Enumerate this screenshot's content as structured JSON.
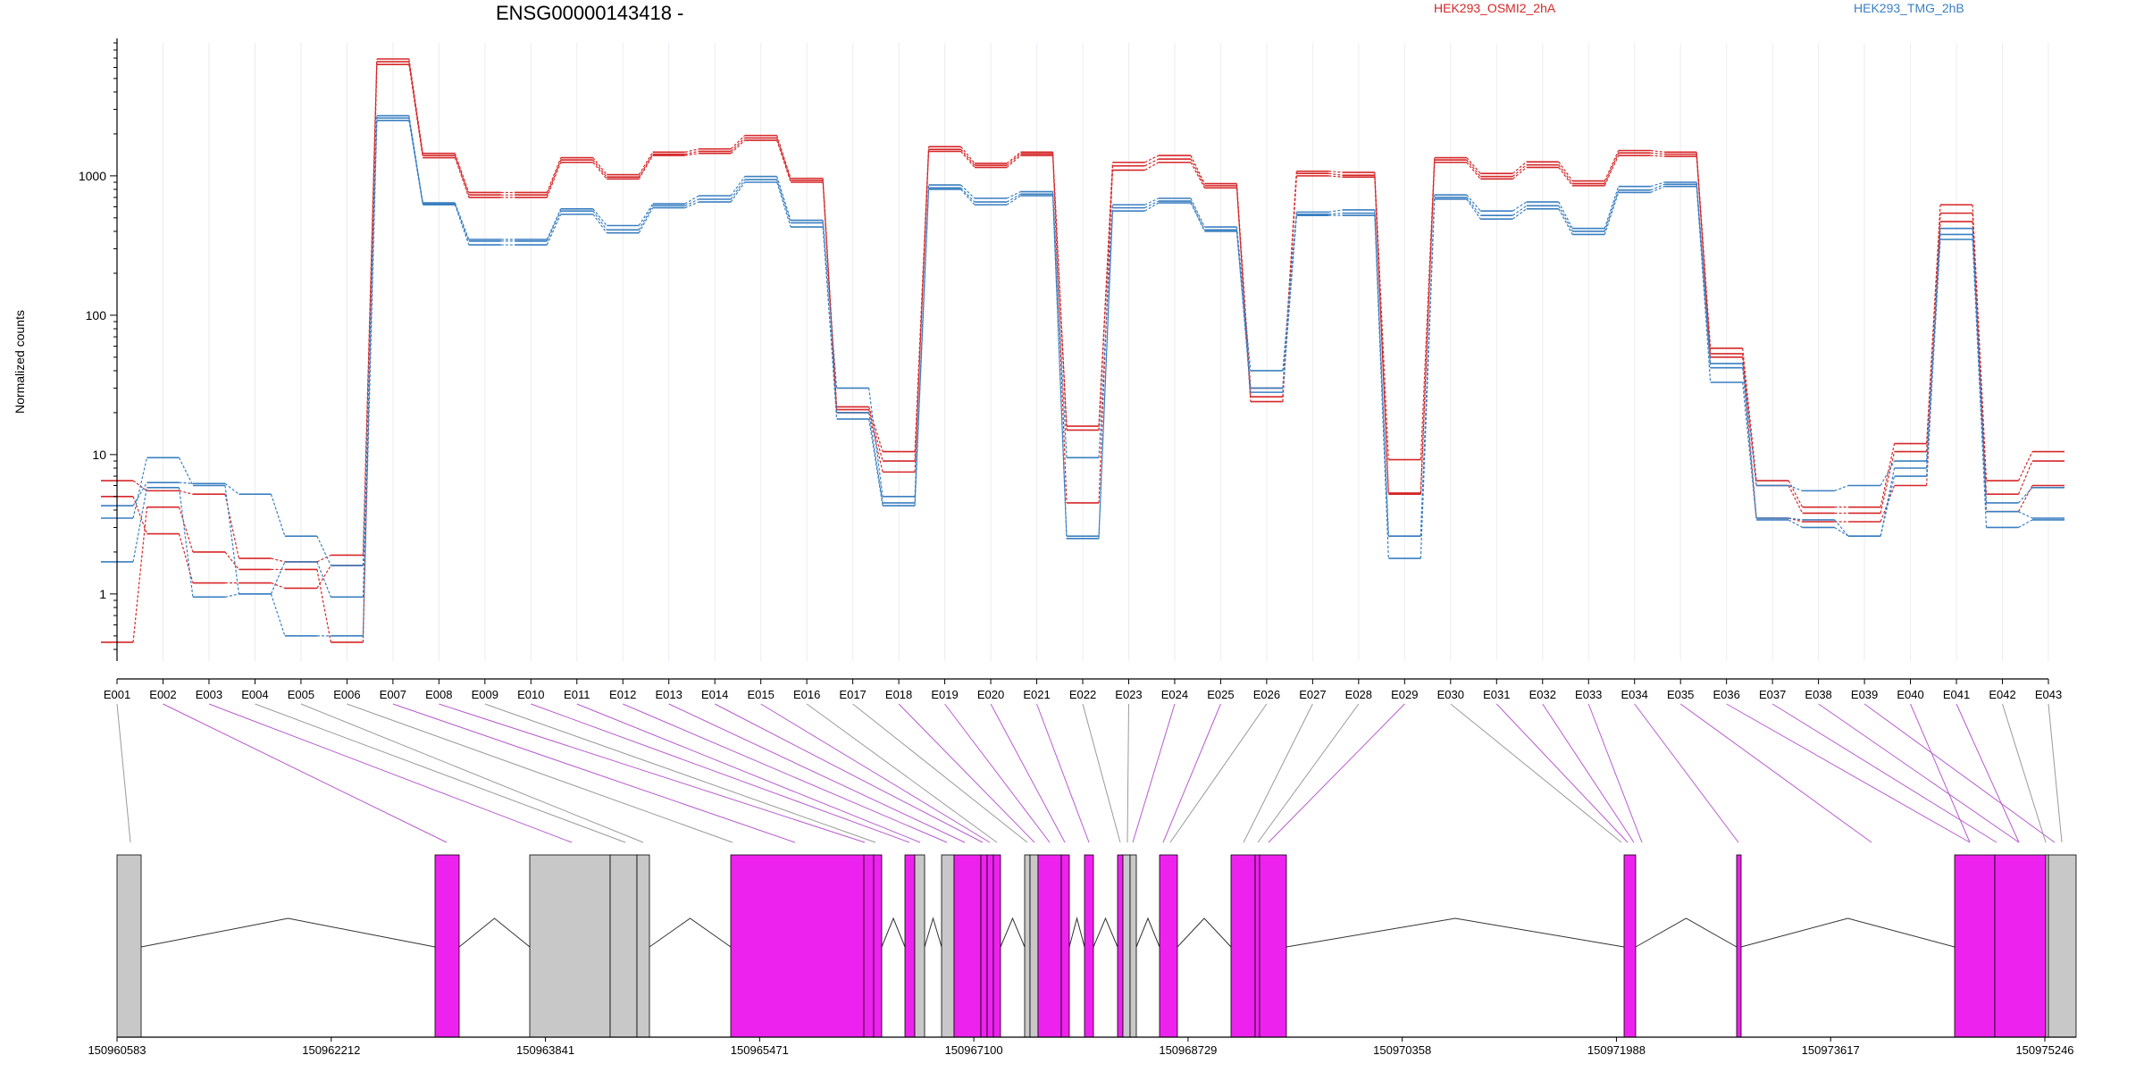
{
  "header": {
    "title": "ENSG00000143418 -",
    "legend": [
      {
        "label": "HEK293_OSMI2_2hA",
        "color": "#d62728"
      },
      {
        "label": "HEK293_TMG_2hB",
        "color": "#3a7fc1"
      }
    ]
  },
  "colors": {
    "red": "#d62728",
    "blue": "#3a7fc1",
    "spliced": "#ee22ee",
    "constitutive": "#c8c8c8"
  },
  "chart_data": {
    "type": "line",
    "ylabel": "Normalized counts",
    "yscale": "log",
    "ylim": [
      0.33,
      9000
    ],
    "yticks": [
      {
        "value": 1,
        "label": "1"
      },
      {
        "value": 10,
        "label": "10"
      },
      {
        "value": 100,
        "label": "100"
      },
      {
        "value": 1000,
        "label": "1000"
      }
    ],
    "categories": [
      "E001",
      "E002",
      "E003",
      "E004",
      "E005",
      "E006",
      "E007",
      "E008",
      "E009",
      "E010",
      "E011",
      "E012",
      "E013",
      "E014",
      "E015",
      "E016",
      "E017",
      "E018",
      "E019",
      "E020",
      "E021",
      "E022",
      "E023",
      "E024",
      "E025",
      "E026",
      "E027",
      "E028",
      "E029",
      "E030",
      "E031",
      "E032",
      "E033",
      "E034",
      "E035",
      "E036",
      "E037",
      "E038",
      "E039",
      "E040",
      "E041",
      "E042",
      "E043"
    ],
    "series": [
      {
        "group": "HEK293_OSMI2_2hA",
        "values": [
          6.5,
          5.5,
          5.2,
          1.8,
          1.7,
          1.9,
          6900,
          1450,
          760,
          760,
          1350,
          1020,
          1480,
          1560,
          1950,
          960,
          22,
          10.5,
          1620,
          1230,
          1480,
          16,
          1250,
          1400,
          880,
          30,
          1080,
          1060,
          9.2,
          1350,
          1040,
          1260,
          920,
          1520,
          1480,
          58,
          6.5,
          4.2,
          4.2,
          12,
          620,
          6.5,
          10.5
        ]
      },
      {
        "group": "HEK293_OSMI2_2hA",
        "values": [
          0.45,
          4.2,
          2,
          1.5,
          1.5,
          0.45,
          6300,
          1350,
          700,
          700,
          1250,
          950,
          1400,
          1450,
          1800,
          900,
          21,
          9,
          1500,
          1150,
          1400,
          15,
          1100,
          1250,
          820,
          26,
          1000,
          980,
          5.2,
          1250,
          950,
          1150,
          850,
          1400,
          1380,
          53,
          6,
          3.8,
          3.8,
          10.5,
          540,
          5.2,
          9
        ]
      },
      {
        "group": "HEK293_OSMI2_2hA",
        "values": [
          5,
          2.7,
          1.2,
          1.2,
          1.1,
          1.6,
          6600,
          1400,
          730,
          730,
          1300,
          980,
          1430,
          1500,
          1870,
          930,
          20,
          7.5,
          1550,
          1190,
          1440,
          4.5,
          1180,
          1320,
          850,
          24,
          1040,
          1010,
          5.3,
          1300,
          990,
          1200,
          880,
          1460,
          1430,
          50,
          3.5,
          3.3,
          3.3,
          6,
          470,
          3.9,
          6
        ]
      },
      {
        "group": "HEK293_TMG_2hB",
        "values": [
          4.3,
          6.3,
          6.2,
          5.2,
          2.6,
          1.6,
          2700,
          640,
          350,
          350,
          580,
          440,
          630,
          720,
          990,
          480,
          30,
          5,
          860,
          690,
          770,
          9.5,
          620,
          690,
          430,
          40,
          550,
          570,
          2.6,
          730,
          560,
          650,
          420,
          840,
          900,
          45,
          6,
          5.5,
          6,
          9,
          420,
          4.5,
          5.8
        ]
      },
      {
        "group": "HEK293_TMG_2hB",
        "values": [
          3.5,
          9.5,
          6,
          1,
          0.5,
          0.5,
          2500,
          620,
          320,
          320,
          530,
          390,
          590,
          650,
          900,
          430,
          20,
          4.5,
          800,
          620,
          720,
          2.6,
          560,
          640,
          400,
          30,
          520,
          520,
          1.8,
          680,
          490,
          580,
          380,
          760,
          840,
          33,
          3.4,
          3,
          2.6,
          7,
          350,
          3,
          3.4
        ]
      },
      {
        "group": "HEK293_TMG_2hB",
        "values": [
          1.7,
          5.8,
          0.95,
          1,
          1.7,
          0.95,
          2600,
          630,
          340,
          340,
          560,
          410,
          610,
          680,
          940,
          460,
          18,
          4.3,
          820,
          650,
          740,
          2.5,
          590,
          660,
          410,
          28,
          530,
          540,
          2.6,
          700,
          520,
          610,
          400,
          790,
          870,
          42,
          3.5,
          3.4,
          2.6,
          8,
          380,
          3.9,
          3.5
        ]
      }
    ]
  },
  "gene_model": {
    "coord_labels": [
      "150960583",
      "150962212",
      "150963841",
      "150965471",
      "150967100",
      "150968729",
      "150970358",
      "150971988",
      "150973617",
      "150975246"
    ]
  }
}
